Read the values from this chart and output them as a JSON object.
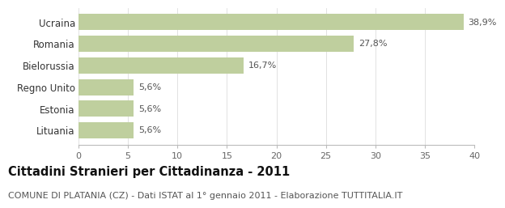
{
  "categories": [
    "Ucraina",
    "Romania",
    "Bielorussia",
    "Regno Unito",
    "Estonia",
    "Lituania"
  ],
  "values": [
    38.9,
    27.8,
    16.7,
    5.6,
    5.6,
    5.6
  ],
  "labels": [
    "38,9%",
    "27,8%",
    "16,7%",
    "5,6%",
    "5,6%",
    "5,6%"
  ],
  "bar_color": "#bfcf9e",
  "background_color": "#ffffff",
  "title": "Cittadini Stranieri per Cittadinanza - 2011",
  "subtitle": "COMUNE DI PLATANIA (CZ) - Dati ISTAT al 1° gennaio 2011 - Elaborazione TUTTITALIA.IT",
  "xlim": [
    0,
    40
  ],
  "xticks": [
    0,
    5,
    10,
    15,
    20,
    25,
    30,
    35,
    40
  ],
  "title_fontsize": 10.5,
  "subtitle_fontsize": 8,
  "label_fontsize": 8,
  "tick_fontsize": 8,
  "ytick_fontsize": 8.5
}
